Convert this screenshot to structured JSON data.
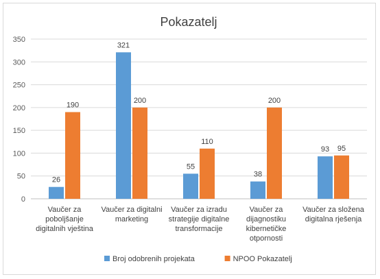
{
  "chart_data": {
    "type": "bar",
    "title": "Pokazatelj",
    "categories": [
      [
        "Vaučer za",
        "poboljšanje",
        "digitalnih vještina"
      ],
      [
        "Vaučer za digitalni",
        "marketing"
      ],
      [
        "Vaučer za izradu",
        "strategije digitalne",
        "transformacije"
      ],
      [
        "Vaučer za",
        "dijagnostiku",
        "kibernetičke",
        "otpornosti"
      ],
      [
        "Vaučer za složena",
        "digitalna rješenja"
      ]
    ],
    "series": [
      {
        "name": "Broj odobrenih projekata",
        "color": "#5b9bd5",
        "values": [
          26,
          321,
          55,
          38,
          93
        ]
      },
      {
        "name": "NPOO Pokazatelj",
        "color": "#ed7d31",
        "values": [
          190,
          200,
          110,
          200,
          95
        ]
      }
    ],
    "ylim": [
      0,
      350
    ],
    "yticks": [
      0,
      50,
      100,
      150,
      200,
      250,
      300,
      350
    ],
    "grid": true,
    "legend_position": "bottom"
  }
}
